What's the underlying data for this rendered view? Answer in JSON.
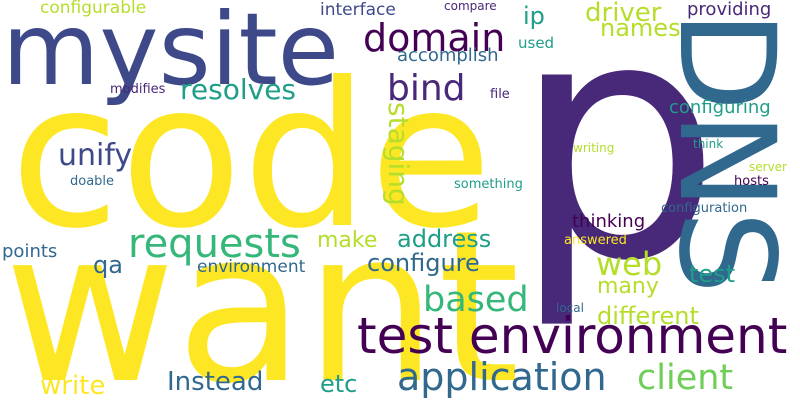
{
  "palette": {
    "yellow": "#fde725",
    "lime": "#b5de2b",
    "green": "#6ece58",
    "teal_green": "#35b779",
    "teal": "#1f9e89",
    "blue_teal": "#26828e",
    "steel": "#31688e",
    "indigo": "#3e4989",
    "purple": "#482878",
    "dark_purple": "#440154"
  },
  "words": [
    {
      "text": "code",
      "color": "yellow"
    },
    {
      "text": "want",
      "color": "yellow"
    },
    {
      "text": "p",
      "color": "purple"
    },
    {
      "text": "DNS",
      "color": "steel"
    },
    {
      "text": "mysite",
      "color": "indigo"
    },
    {
      "text": "test environment",
      "color": "dark_purple"
    },
    {
      "text": "application",
      "color": "steel"
    },
    {
      "text": "requests",
      "color": "teal_green"
    },
    {
      "text": "based",
      "color": "teal_green"
    },
    {
      "text": "client",
      "color": "green"
    },
    {
      "text": "domain",
      "color": "dark_purple"
    },
    {
      "text": "bind",
      "color": "purple"
    },
    {
      "text": "web",
      "color": "lime"
    },
    {
      "text": "resolves",
      "color": "teal"
    },
    {
      "text": "unify",
      "color": "indigo"
    },
    {
      "text": "staging",
      "color": "lime"
    },
    {
      "text": "configure",
      "color": "steel"
    },
    {
      "text": "address",
      "color": "teal"
    },
    {
      "text": "make",
      "color": "lime"
    },
    {
      "text": "different",
      "color": "lime"
    },
    {
      "text": "many",
      "color": "lime"
    },
    {
      "text": "test",
      "color": "teal"
    },
    {
      "text": "Instead",
      "color": "steel"
    },
    {
      "text": "etc",
      "color": "teal"
    },
    {
      "text": "write",
      "color": "yellow"
    },
    {
      "text": "driver",
      "color": "lime"
    },
    {
      "text": "ip",
      "color": "teal"
    },
    {
      "text": "names",
      "color": "lime"
    },
    {
      "text": "qa",
      "color": "steel"
    },
    {
      "text": "points",
      "color": "steel"
    },
    {
      "text": "environment",
      "color": "steel"
    },
    {
      "text": "configuring",
      "color": "teal"
    },
    {
      "text": "thinking",
      "color": "dark_purple"
    },
    {
      "text": "accomplish",
      "color": "steel"
    },
    {
      "text": "providing",
      "color": "purple"
    },
    {
      "text": "configurable",
      "color": "lime"
    },
    {
      "text": "interface",
      "color": "indigo"
    },
    {
      "text": "compare",
      "color": "purple"
    },
    {
      "text": "used",
      "color": "teal"
    },
    {
      "text": "modifies",
      "color": "purple"
    },
    {
      "text": "file",
      "color": "purple"
    },
    {
      "text": "writing",
      "color": "lime"
    },
    {
      "text": "think",
      "color": "teal"
    },
    {
      "text": "server",
      "color": "lime"
    },
    {
      "text": "hosts",
      "color": "dark_purple"
    },
    {
      "text": "doable",
      "color": "steel"
    },
    {
      "text": "something",
      "color": "teal"
    },
    {
      "text": "configuration",
      "color": "steel"
    },
    {
      "text": "answered",
      "color": "yellow"
    },
    {
      "text": "local",
      "color": "steel"
    }
  ]
}
